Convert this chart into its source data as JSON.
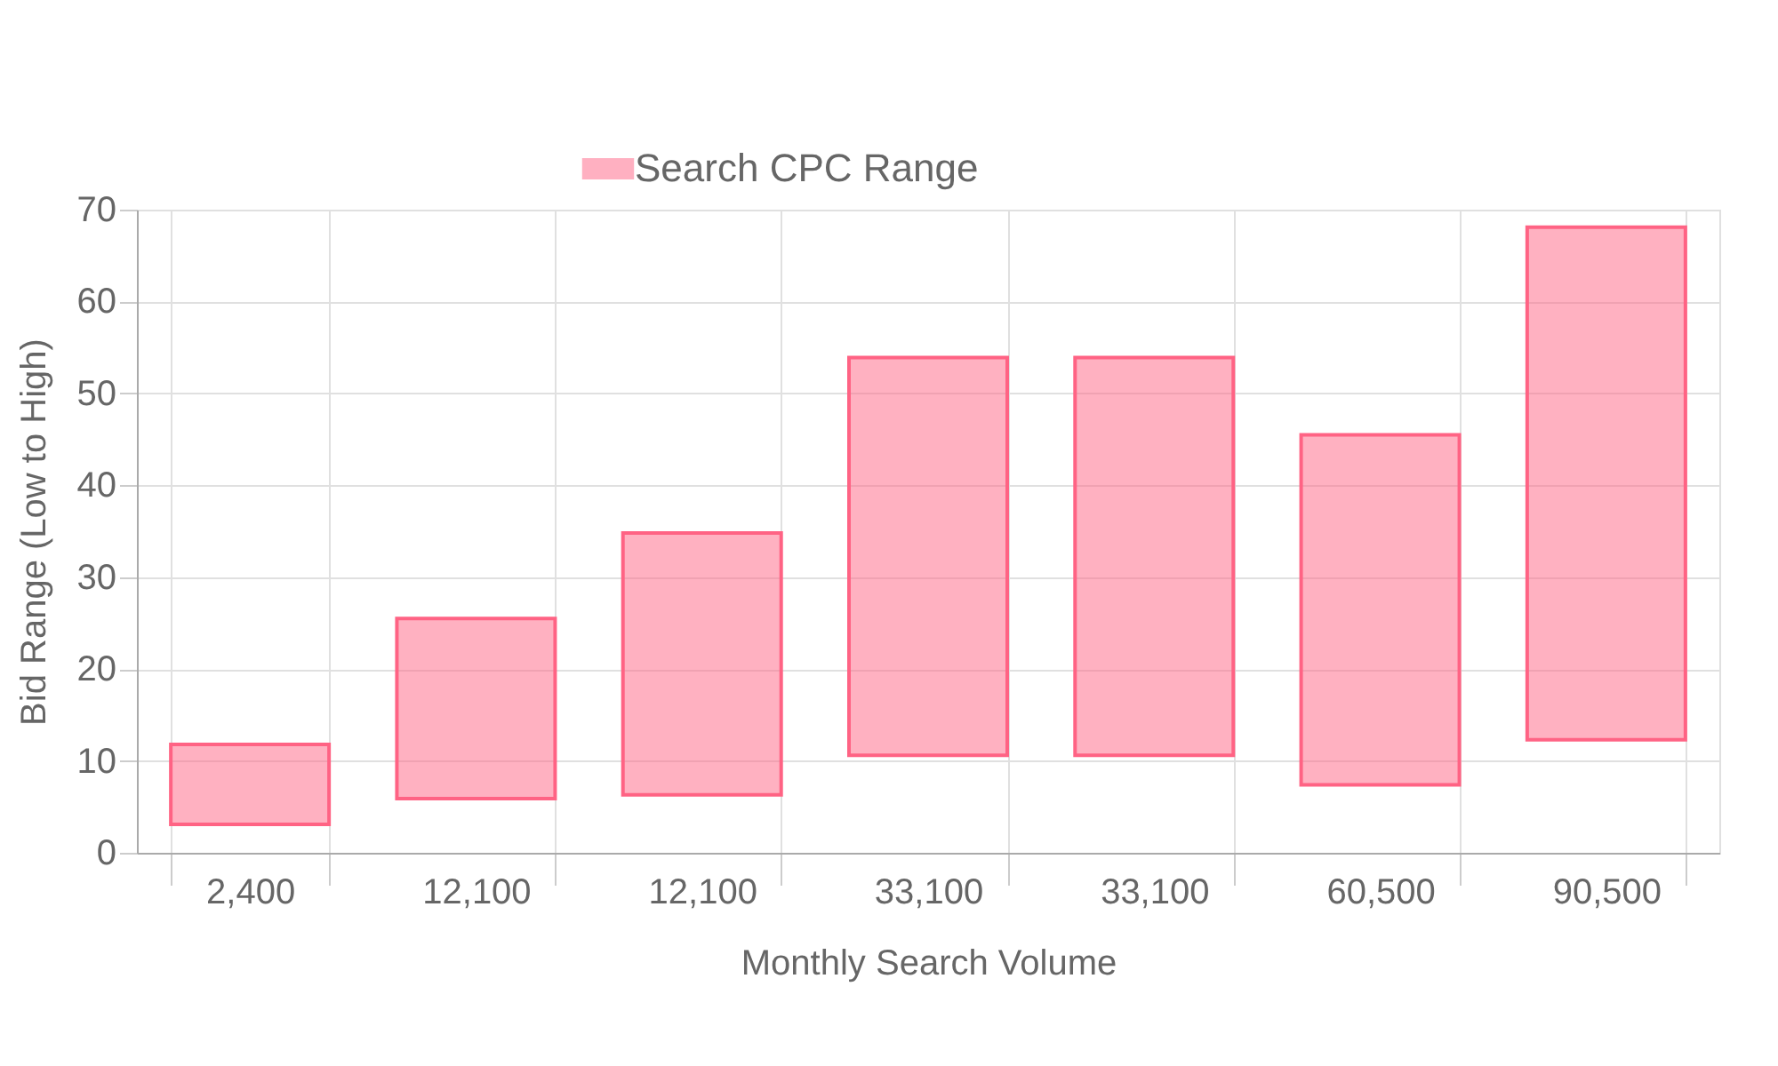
{
  "chart_data": {
    "type": "bar",
    "xlabel": "Monthly Search Volume",
    "ylabel": "Bid Range (Low to High)",
    "categories": [
      "2,400",
      "12,100",
      "12,100",
      "33,100",
      "33,100",
      "60,500",
      "90,500"
    ],
    "series": [
      {
        "name": "Search CPC Range",
        "color": "#ff6384",
        "values": [
          8.7,
          19.6,
          28.5,
          43.3,
          43.3,
          38.1,
          55.8
        ],
        "base": [
          3.1,
          5.9,
          6.3,
          10.6,
          10.6,
          7.4,
          12.3
        ]
      }
    ],
    "ylim": [
      0,
      70
    ],
    "yticks": [
      0,
      10,
      20,
      30,
      40,
      50,
      60,
      70
    ],
    "grid": true,
    "legend": "top"
  }
}
